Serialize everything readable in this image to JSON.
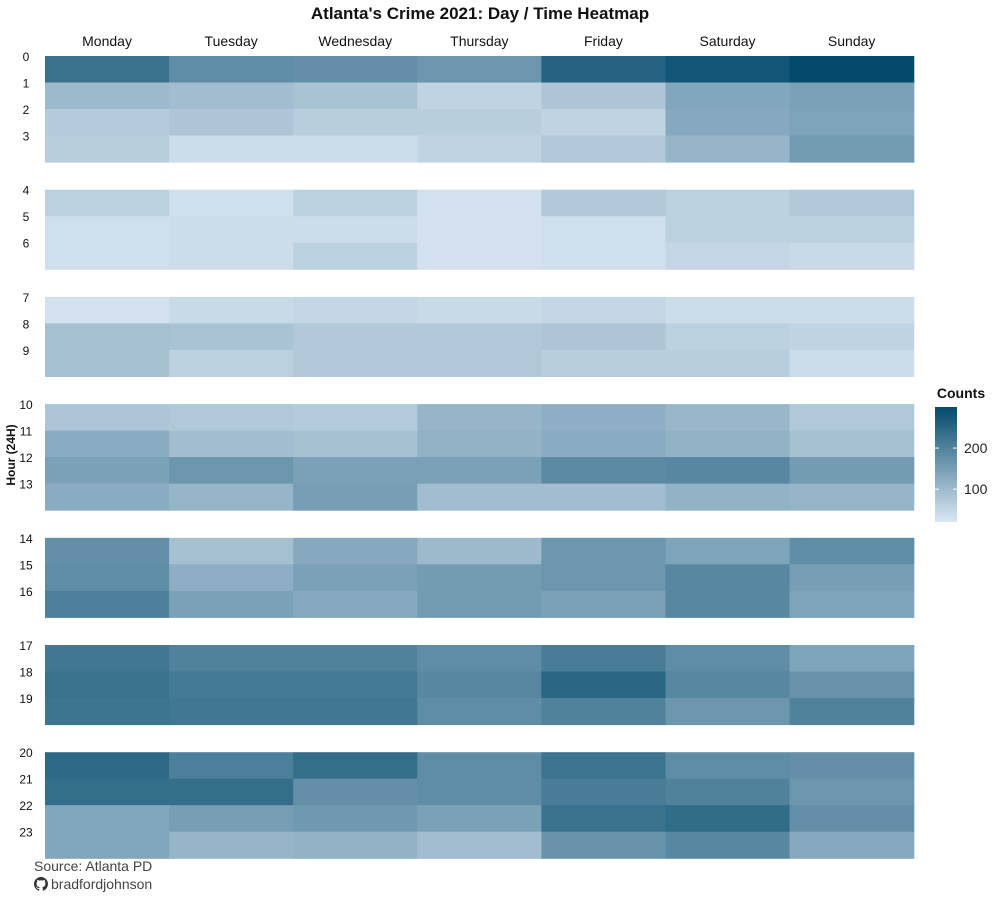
{
  "chart_data": {
    "type": "heatmap",
    "title": "Atlanta's Crime 2021: Day / Time Heatmap",
    "xlabel": "",
    "ylabel": "Hour (24H)",
    "days": [
      "Monday",
      "Tuesday",
      "Wednesday",
      "Thursday",
      "Friday",
      "Saturday",
      "Sunday"
    ],
    "hours": [
      "0",
      "1",
      "2",
      "3",
      "4",
      "5",
      "6",
      "7",
      "8",
      "9",
      "10",
      "11",
      "12",
      "13",
      "14",
      "15",
      "16",
      "17",
      "18",
      "19",
      "20",
      "21",
      "22",
      "23"
    ],
    "hour_groups": [
      [
        0,
        1,
        2,
        3
      ],
      [
        4,
        5,
        6
      ],
      [
        7,
        8,
        9
      ],
      [
        10,
        11,
        12,
        13
      ],
      [
        14,
        15,
        16
      ],
      [
        17,
        18,
        19
      ],
      [
        20,
        21,
        22,
        23
      ]
    ],
    "values": [
      [
        230,
        180,
        175,
        165,
        255,
        280,
        300
      ],
      [
        100,
        95,
        85,
        55,
        80,
        135,
        145
      ],
      [
        70,
        80,
        65,
        65,
        55,
        130,
        140
      ],
      [
        65,
        40,
        40,
        55,
        75,
        110,
        155
      ],
      [
        60,
        35,
        60,
        30,
        75,
        60,
        75
      ],
      [
        35,
        40,
        40,
        30,
        35,
        60,
        60
      ],
      [
        35,
        40,
        60,
        30,
        35,
        50,
        45
      ],
      [
        30,
        45,
        50,
        45,
        50,
        40,
        40
      ],
      [
        90,
        85,
        75,
        75,
        80,
        60,
        55
      ],
      [
        90,
        60,
        75,
        75,
        65,
        65,
        40
      ],
      [
        80,
        75,
        70,
        110,
        120,
        105,
        75
      ],
      [
        125,
        95,
        90,
        115,
        125,
        115,
        90
      ],
      [
        145,
        165,
        145,
        145,
        185,
        190,
        155
      ],
      [
        125,
        110,
        150,
        95,
        95,
        115,
        110
      ],
      [
        175,
        90,
        130,
        100,
        165,
        140,
        180
      ],
      [
        180,
        120,
        145,
        155,
        165,
        190,
        150
      ],
      [
        205,
        145,
        130,
        155,
        145,
        190,
        140
      ],
      [
        220,
        200,
        200,
        180,
        210,
        180,
        140
      ],
      [
        230,
        215,
        215,
        190,
        250,
        190,
        170
      ],
      [
        225,
        220,
        220,
        180,
        200,
        165,
        200
      ],
      [
        245,
        205,
        235,
        180,
        225,
        180,
        175
      ],
      [
        235,
        235,
        175,
        180,
        210,
        200,
        165
      ],
      [
        135,
        150,
        160,
        145,
        230,
        240,
        175
      ],
      [
        135,
        110,
        115,
        95,
        170,
        190,
        130
      ]
    ],
    "colorbar": {
      "title": "Counts",
      "ticks": [
        100,
        200
      ],
      "min": 20,
      "max": 300,
      "color_low": "#dbe7f3",
      "color_high": "#034a6c"
    },
    "grid": false,
    "legend_position": "right"
  },
  "captions": {
    "source": "Source: Atlanta PD",
    "author": "bradfordjohnson",
    "author_icon": "github-icon"
  }
}
